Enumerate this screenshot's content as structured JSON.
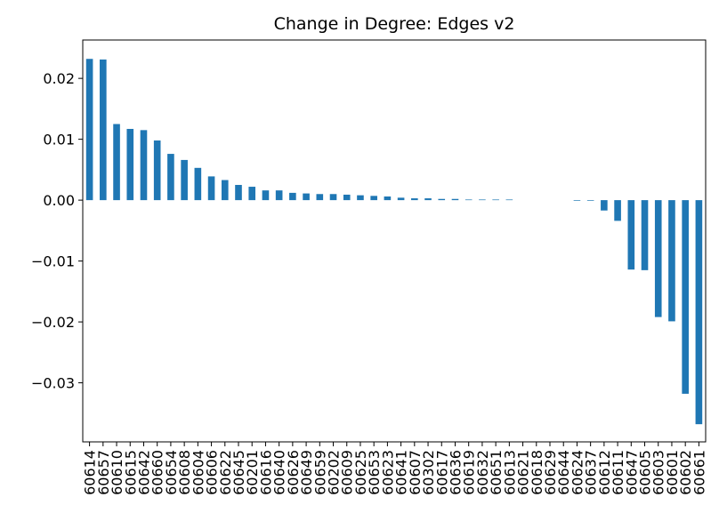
{
  "chart_data": {
    "type": "bar",
    "title": "Change in Degree: Edges v2",
    "categories": [
      "60614",
      "60657",
      "60610",
      "60615",
      "60642",
      "60660",
      "60654",
      "60608",
      "60604",
      "60606",
      "60622",
      "60645",
      "60201",
      "60616",
      "60640",
      "60626",
      "60649",
      "60659",
      "60202",
      "60609",
      "60625",
      "60653",
      "60623",
      "60641",
      "60607",
      "60302",
      "60617",
      "60636",
      "60619",
      "60632",
      "60651",
      "60613",
      "60621",
      "60618",
      "60629",
      "60644",
      "60624",
      "60637",
      "60612",
      "60611",
      "60647",
      "60605",
      "60603",
      "60601",
      "60602",
      "60661"
    ],
    "values": [
      0.0232,
      0.0231,
      0.0125,
      0.0117,
      0.0115,
      0.0098,
      0.0076,
      0.0066,
      0.0053,
      0.0039,
      0.0033,
      0.0025,
      0.0022,
      0.0016,
      0.0016,
      0.0012,
      0.0011,
      0.001,
      0.001,
      0.0009,
      0.0008,
      0.0007,
      0.0006,
      0.0004,
      0.0003,
      0.0003,
      0.0002,
      0.0002,
      0.0001,
      0.0001,
      0.0001,
      0.0001,
      0,
      0,
      0,
      0,
      -0.0001,
      -0.0001,
      -0.0017,
      -0.0034,
      -0.0114,
      -0.0115,
      -0.0192,
      -0.0199,
      -0.0318,
      -0.0368
    ],
    "color": "#1f77b4",
    "ylim": [
      -0.0397,
      0.0263
    ],
    "yticks": [
      {
        "value": -0.03,
        "label": "−0.03"
      },
      {
        "value": -0.02,
        "label": "−0.02"
      },
      {
        "value": -0.01,
        "label": "−0.01"
      },
      {
        "value": 0,
        "label": "0.00"
      },
      0.01,
      0.02
    ]
  }
}
